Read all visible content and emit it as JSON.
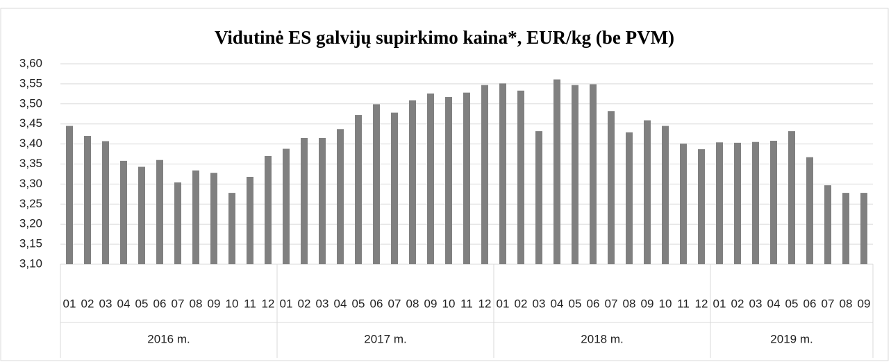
{
  "chart_data": {
    "type": "bar",
    "title": "Vidutinė ES galvijų supirkimo kaina*, EUR/kg (be PVM)",
    "groups": [
      {
        "label": "2016 m.",
        "categories": [
          "01",
          "02",
          "03",
          "04",
          "05",
          "06",
          "07",
          "08",
          "09",
          "10",
          "11",
          "12"
        ]
      },
      {
        "label": "2017 m.",
        "categories": [
          "01",
          "02",
          "03",
          "04",
          "05",
          "06",
          "07",
          "08",
          "09",
          "10",
          "11",
          "12"
        ]
      },
      {
        "label": "2018 m.",
        "categories": [
          "01",
          "02",
          "03",
          "04",
          "05",
          "06",
          "07",
          "08",
          "09",
          "10",
          "11",
          "12"
        ]
      },
      {
        "label": "2019 m.",
        "categories": [
          "01",
          "02",
          "03",
          "04",
          "05",
          "06",
          "07",
          "08",
          "09"
        ]
      }
    ],
    "values": [
      3.445,
      3.42,
      3.407,
      3.358,
      3.343,
      3.36,
      3.304,
      3.334,
      3.328,
      3.278,
      3.318,
      3.37,
      3.388,
      3.415,
      3.415,
      3.437,
      3.472,
      3.499,
      3.478,
      3.509,
      3.526,
      3.517,
      3.528,
      3.547,
      3.551,
      3.533,
      3.432,
      3.561,
      3.547,
      3.549,
      3.482,
      3.429,
      3.459,
      3.445,
      3.401,
      3.387,
      3.404,
      3.403,
      3.405,
      3.408,
      3.432,
      3.367,
      3.297,
      3.278,
      3.278
    ],
    "color": "#808080",
    "ylim": [
      3.1,
      3.6
    ],
    "yticks": [
      {
        "value": 3.1,
        "label": "3,10"
      },
      {
        "value": 3.15,
        "label": "3,15"
      },
      {
        "value": 3.2,
        "label": "3,20"
      },
      {
        "value": 3.25,
        "label": "3,25"
      },
      {
        "value": 3.3,
        "label": "3,30"
      },
      {
        "value": 3.35,
        "label": "3,35"
      },
      {
        "value": 3.4,
        "label": "3,40"
      },
      {
        "value": 3.45,
        "label": "3,45"
      },
      {
        "value": 3.5,
        "label": "3,50"
      },
      {
        "value": 3.55,
        "label": "3,55"
      },
      {
        "value": 3.6,
        "label": "3,60"
      }
    ],
    "grid": true
  }
}
